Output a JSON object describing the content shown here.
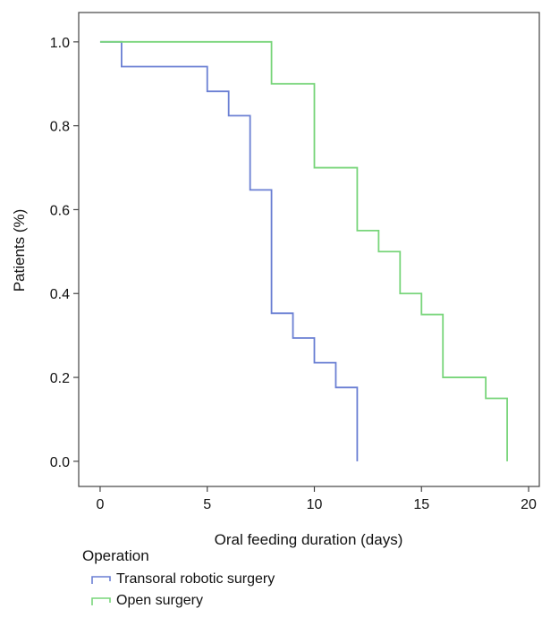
{
  "chart_data": {
    "type": "line",
    "step": true,
    "title": "",
    "xlabel": "Oral feeding duration (days)",
    "ylabel": "Patients (%)",
    "xlim": [
      -1,
      20.5
    ],
    "ylim": [
      -0.06,
      1.07
    ],
    "xticks": [
      0,
      5,
      10,
      15,
      20
    ],
    "xtick_labels": [
      "0",
      "5",
      "10",
      "15",
      "20"
    ],
    "yticks": [
      0.0,
      0.2,
      0.4,
      0.6,
      0.8,
      1.0
    ],
    "ytick_labels": [
      "0.0",
      "0.2",
      "0.4",
      "0.6",
      "0.8",
      "1.0"
    ],
    "grid": false,
    "legend_position": "bottom",
    "legend_title": "Operation",
    "series": [
      {
        "name": "Transoral robotic surgery",
        "color": "#6a7fd3",
        "x": [
          0,
          1,
          5,
          6,
          7,
          8,
          9,
          10,
          11,
          12
        ],
        "y": [
          1.0,
          0.941,
          0.882,
          0.824,
          0.647,
          0.353,
          0.294,
          0.235,
          0.176,
          0.059
        ],
        "end": [
          12,
          0.0
        ]
      },
      {
        "name": "Open surgery",
        "color": "#78d57a",
        "x": [
          0,
          7,
          8,
          10,
          12,
          13,
          14,
          15,
          16,
          18
        ],
        "y": [
          1.0,
          1.0,
          0.9,
          0.7,
          0.55,
          0.5,
          0.4,
          0.35,
          0.2,
          0.15
        ],
        "end": [
          19,
          0.0
        ]
      }
    ]
  }
}
